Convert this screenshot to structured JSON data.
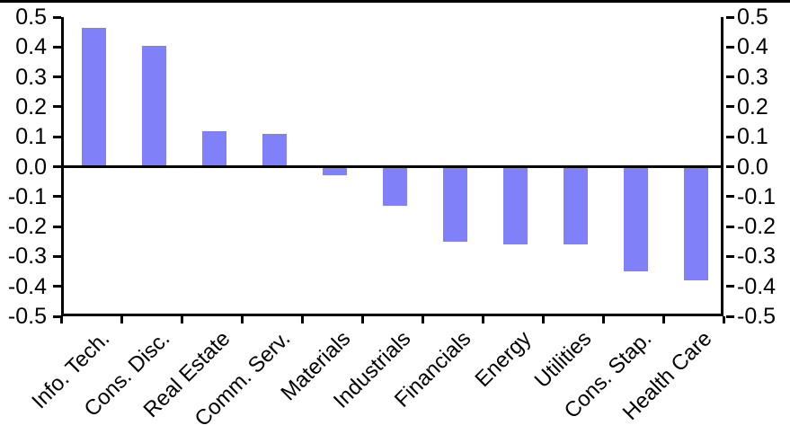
{
  "chart_data": {
    "type": "bar",
    "title": "",
    "xlabel": "",
    "ylabel": "",
    "categories": [
      "Info. Tech.",
      "Cons. Disc.",
      "Real Estate",
      "Comm. Serv.",
      "Materials",
      "Industrials",
      "Financials",
      "Energy",
      "Utilities",
      "Cons. Stap.",
      "Health Care"
    ],
    "values": [
      0.465,
      0.405,
      0.12,
      0.11,
      -0.03,
      -0.13,
      -0.25,
      -0.26,
      -0.26,
      -0.35,
      -0.38
    ],
    "ylim": [
      -0.5,
      0.5
    ],
    "ytick_step": 0.1,
    "ytick_labels": [
      "0.5",
      "0.4",
      "0.3",
      "0.2",
      "0.1",
      "0.0",
      "-0.1",
      "-0.2",
      "-0.3",
      "-0.4",
      "-0.5"
    ],
    "dual_y_axis": true,
    "grid": false,
    "legend_position": "none",
    "bar_color": "#8080f8",
    "axis_color": "#000000",
    "background_color": "#ffffff"
  }
}
